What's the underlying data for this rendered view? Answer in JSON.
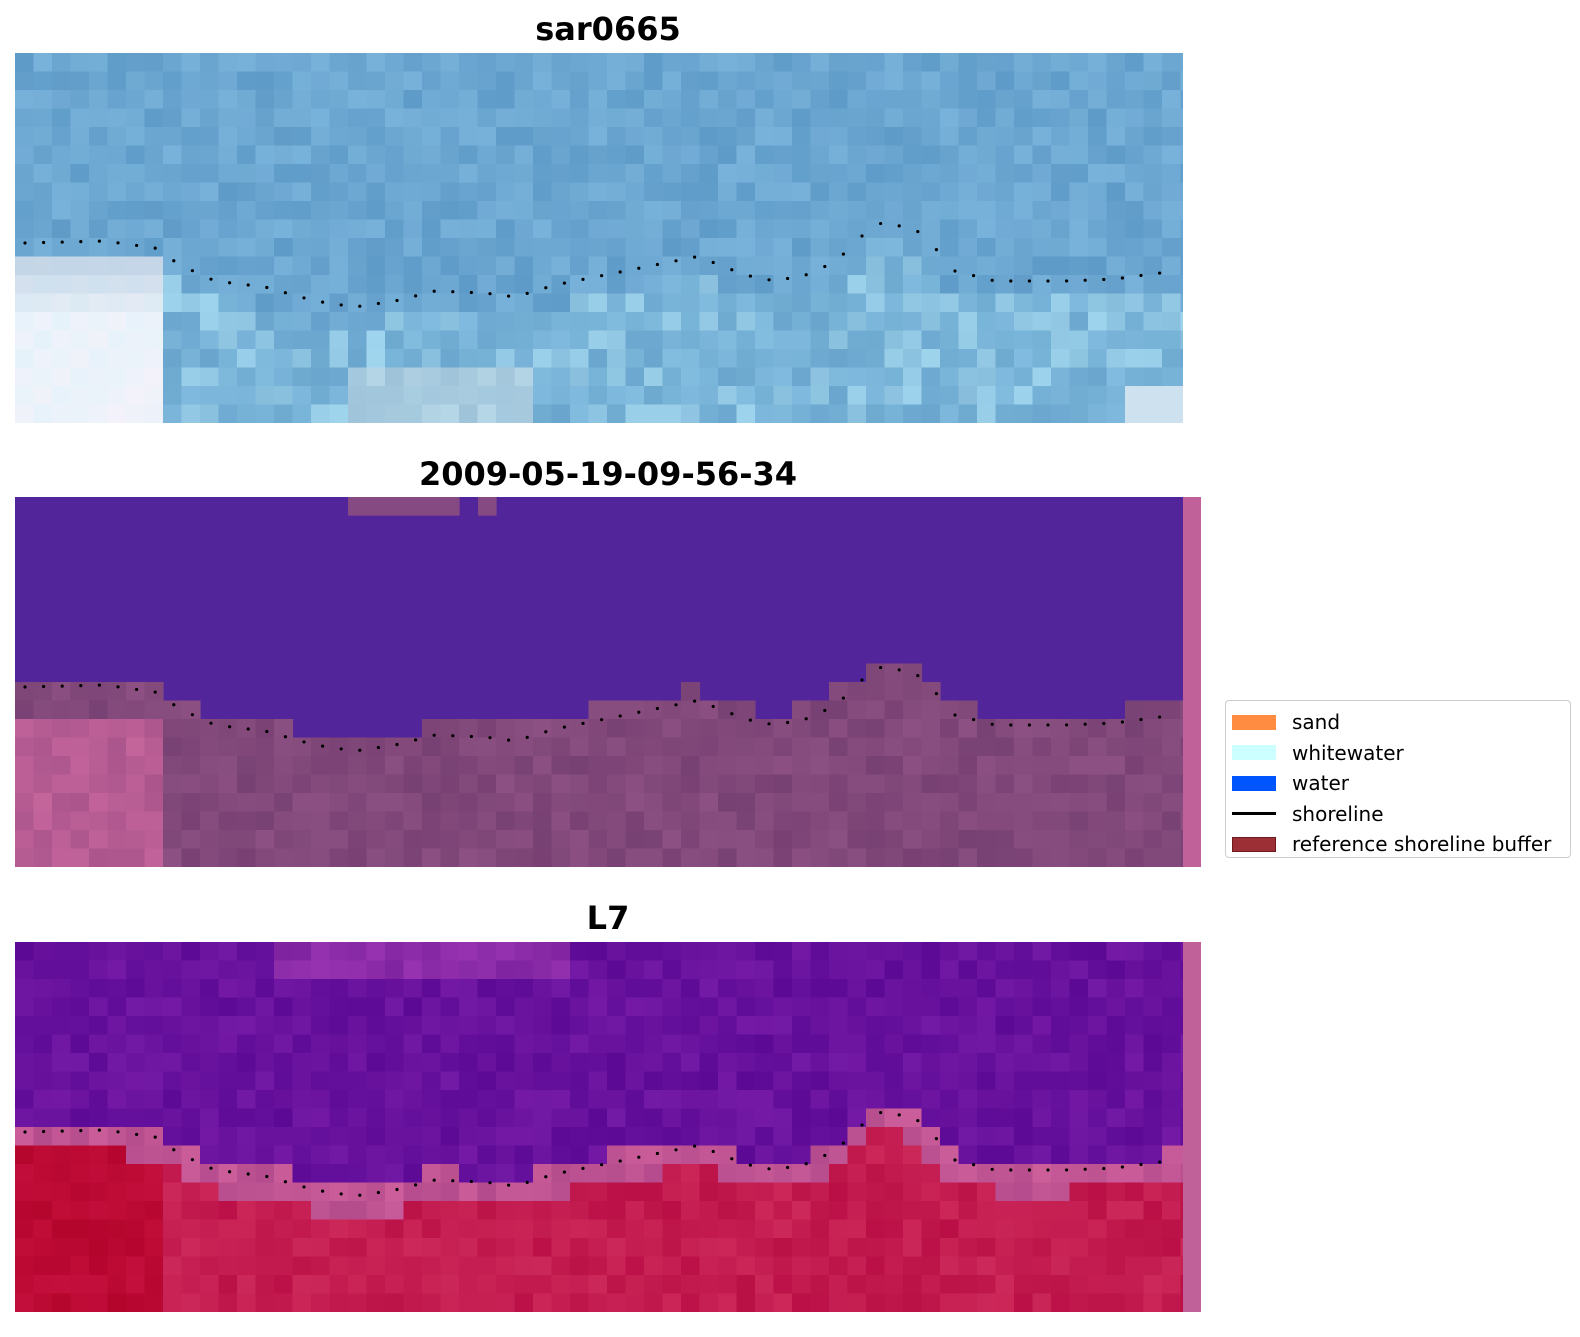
{
  "panels": [
    {
      "title": "sar0665"
    },
    {
      "title": "2009-05-19-09-56-34"
    },
    {
      "title": "L7"
    }
  ],
  "legend": {
    "items": [
      {
        "label": "sand",
        "color": "#ff8c40",
        "kind": "patch"
      },
      {
        "label": "whitewater",
        "color": "#ccffff",
        "kind": "patch"
      },
      {
        "label": "water",
        "color": "#0055ff",
        "kind": "patch"
      },
      {
        "label": "shoreline",
        "color": "#000000",
        "kind": "line"
      },
      {
        "label": "reference shoreline buffer",
        "color": "#9b2f35",
        "kind": "patch"
      }
    ]
  },
  "colors": {
    "rgb_water": "#6aa6cc",
    "class_water": "#53259a",
    "class_buffer": "#864a82",
    "mndwi_high": "#65109a",
    "mndwi_low": "#c2205a",
    "edge_strip": "#c0619a"
  }
}
